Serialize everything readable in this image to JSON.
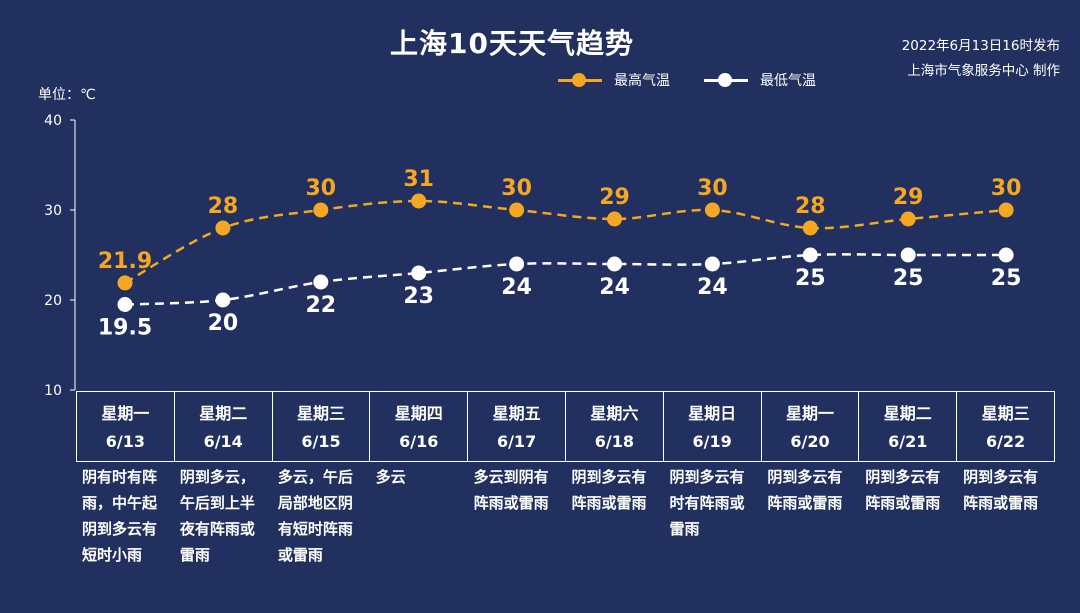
{
  "header": {
    "title": "上海10天天气趋势",
    "issue_time": "2022年6月13日16时发布",
    "issuer": "上海市气象服务中心 制作"
  },
  "unit_label": "单位：℃",
  "legend": [
    {
      "name": "最高气温",
      "color": "#f5a623"
    },
    {
      "name": "最低气温",
      "color": "#ffffff"
    }
  ],
  "chart_data": {
    "type": "line",
    "title": "上海10天天气趋势",
    "ylabel": "单位：℃",
    "ylim": [
      10,
      40
    ],
    "yticks": [
      10,
      20,
      30,
      40
    ],
    "grid": false,
    "legend_position": "top-right",
    "categories": [
      "6/13",
      "6/14",
      "6/15",
      "6/16",
      "6/17",
      "6/18",
      "6/19",
      "6/20",
      "6/21",
      "6/22"
    ],
    "series": [
      {
        "name": "最高气温",
        "color": "#f5a623",
        "values": [
          21.9,
          28,
          30,
          31,
          30,
          29,
          30,
          28,
          29,
          30
        ]
      },
      {
        "name": "最低气温",
        "color": "#ffffff",
        "values": [
          19.5,
          20,
          22,
          23,
          24,
          24,
          24,
          25,
          25,
          25
        ]
      }
    ]
  },
  "days": [
    {
      "weekday": "星期一",
      "date": "6/13",
      "desc": "阴有时有阵雨，中午起阴到多云有短时小雨"
    },
    {
      "weekday": "星期二",
      "date": "6/14",
      "desc": "阴到多云，午后到上半夜有阵雨或雷雨"
    },
    {
      "weekday": "星期三",
      "date": "6/15",
      "desc": "多云，午后局部地区阴有短时阵雨或雷雨"
    },
    {
      "weekday": "星期四",
      "date": "6/16",
      "desc": "多云"
    },
    {
      "weekday": "星期五",
      "date": "6/17",
      "desc": "多云到阴有阵雨或雷雨"
    },
    {
      "weekday": "星期六",
      "date": "6/18",
      "desc": "阴到多云有阵雨或雷雨"
    },
    {
      "weekday": "星期日",
      "date": "6/19",
      "desc": "阴到多云有时有阵雨或雷雨"
    },
    {
      "weekday": "星期一",
      "date": "6/20",
      "desc": "阴到多云有阵雨或雷雨"
    },
    {
      "weekday": "星期二",
      "date": "6/21",
      "desc": "阴到多云有阵雨或雷雨"
    },
    {
      "weekday": "星期三",
      "date": "6/22",
      "desc": "阴到多云有阵雨或雷雨"
    }
  ]
}
